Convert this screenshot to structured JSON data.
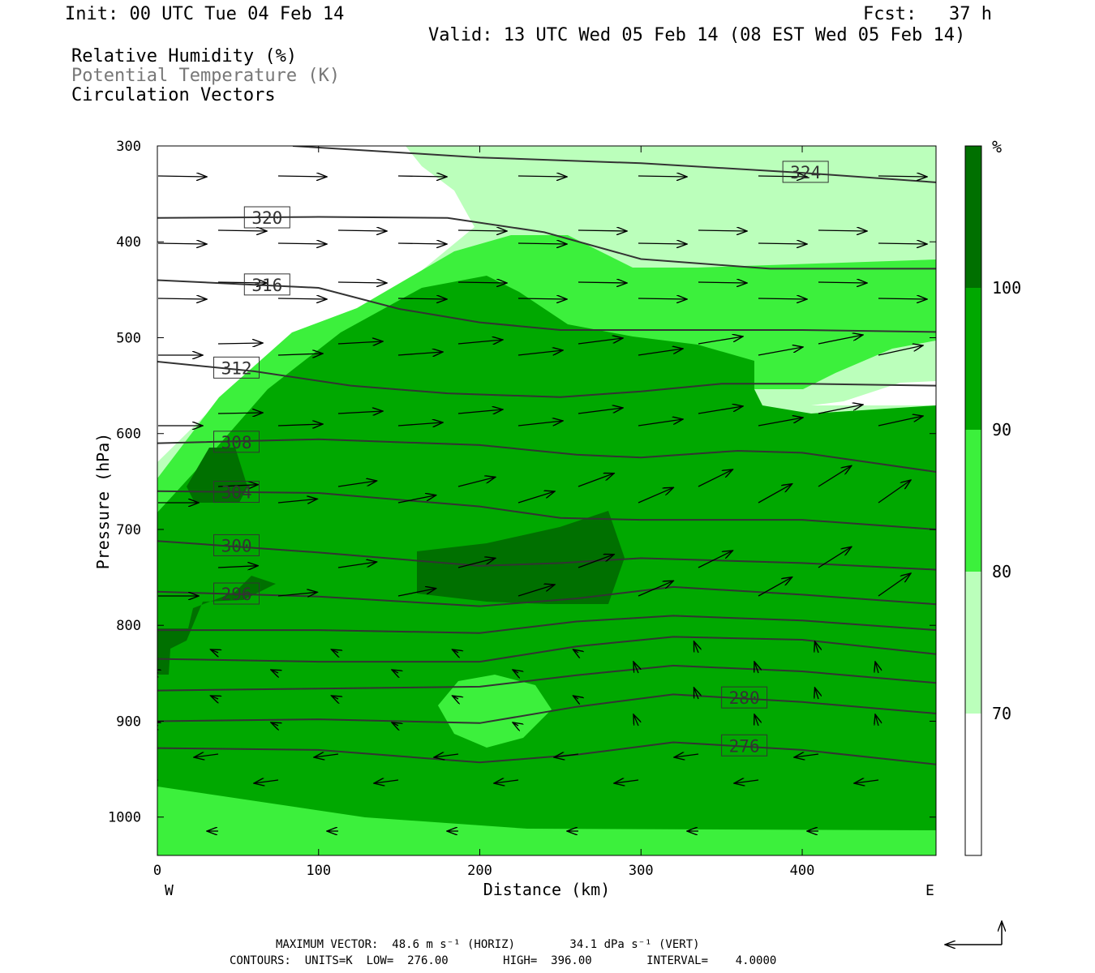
{
  "header": {
    "init": "Init: 00 UTC Tue 04 Feb 14",
    "fcst": "Fcst:   37 h",
    "valid": "Valid: 13 UTC Wed 05 Feb 14 (08 EST Wed 05 Feb 14)",
    "legend_rh": "Relative Humidity (%)",
    "legend_theta": "Potential Temperature (K)",
    "legend_vec": "Circulation Vectors"
  },
  "footer": {
    "max_vector": "MAXIMUM VECTOR:  48.6 m s⁻¹ (HORIZ)        34.1 dPa s⁻¹ (VERT)",
    "contours": "CONTOURS:  UNITS=K  LOW=  276.00        HIGH=  396.00        INTERVAL=    4.0000"
  },
  "colors": {
    "rh_below_70": "#ffffff",
    "rh_70_80": "#bbffbb",
    "rh_80_90": "#3cf03c",
    "rh_90_100": "#00a800",
    "rh_100": "#007000",
    "contour": "#333333"
  },
  "chart_data": {
    "type": "cross-section",
    "xlabel": "Distance (km)",
    "ylabel": "Pressure (hPa)",
    "xlim": [
      0,
      483
    ],
    "ylim": [
      1040,
      300
    ],
    "x_ticks": [
      0,
      100,
      200,
      300,
      400
    ],
    "y_ticks": [
      300,
      400,
      500,
      600,
      700,
      800,
      900,
      1000
    ],
    "x_end_labels": {
      "left": "W",
      "right": "E"
    },
    "colorbar": {
      "unit": "%",
      "levels": [
        70,
        80,
        90,
        100
      ],
      "level_labels": [
        "70",
        "80",
        "90",
        "100"
      ]
    },
    "isentropes": [
      {
        "theta": 324,
        "label_x": 390,
        "points": [
          [
            84,
            300
          ],
          [
            200,
            312
          ],
          [
            300,
            318
          ],
          [
            400,
            328
          ],
          [
            483,
            338
          ]
        ]
      },
      {
        "theta": 320,
        "label_x": 56,
        "points": [
          [
            0,
            375
          ],
          [
            100,
            374
          ],
          [
            180,
            375
          ],
          [
            240,
            390
          ],
          [
            300,
            418
          ],
          [
            380,
            428
          ],
          [
            483,
            428
          ]
        ]
      },
      {
        "theta": 316,
        "label_x": 56,
        "points": [
          [
            0,
            440
          ],
          [
            100,
            448
          ],
          [
            150,
            470
          ],
          [
            200,
            484
          ],
          [
            250,
            492
          ],
          [
            300,
            492
          ],
          [
            400,
            492
          ],
          [
            483,
            494
          ]
        ]
      },
      {
        "theta": 312,
        "label_x": 37,
        "points": [
          [
            0,
            525
          ],
          [
            60,
            535
          ],
          [
            120,
            550
          ],
          [
            180,
            558
          ],
          [
            250,
            562
          ],
          [
            300,
            556
          ],
          [
            350,
            548
          ],
          [
            400,
            548
          ],
          [
            483,
            550
          ]
        ]
      },
      {
        "theta": 308,
        "label_x": 37,
        "points": [
          [
            0,
            610
          ],
          [
            100,
            606
          ],
          [
            200,
            612
          ],
          [
            260,
            622
          ],
          [
            300,
            625
          ],
          [
            360,
            618
          ],
          [
            400,
            620
          ],
          [
            483,
            640
          ]
        ]
      },
      {
        "theta": 304,
        "label_x": 37,
        "points": [
          [
            0,
            660
          ],
          [
            100,
            662
          ],
          [
            200,
            676
          ],
          [
            250,
            688
          ],
          [
            300,
            690
          ],
          [
            400,
            690
          ],
          [
            483,
            700
          ]
        ]
      },
      {
        "theta": 300,
        "label_x": 37,
        "points": [
          [
            0,
            712
          ],
          [
            100,
            724
          ],
          [
            200,
            738
          ],
          [
            250,
            735
          ],
          [
            300,
            730
          ],
          [
            400,
            735
          ],
          [
            483,
            742
          ]
        ]
      },
      {
        "theta": 296,
        "label_x": 37,
        "points": [
          [
            0,
            765
          ],
          [
            100,
            770
          ],
          [
            200,
            780
          ],
          [
            260,
            772
          ],
          [
            320,
            760
          ],
          [
            400,
            768
          ],
          [
            483,
            778
          ]
        ]
      },
      {
        "theta": 292,
        "points": [
          [
            0,
            805
          ],
          [
            100,
            805
          ],
          [
            200,
            808
          ],
          [
            260,
            796
          ],
          [
            320,
            790
          ],
          [
            400,
            795
          ],
          [
            483,
            805
          ]
        ]
      },
      {
        "theta": 288,
        "points": [
          [
            0,
            835
          ],
          [
            100,
            838
          ],
          [
            200,
            838
          ],
          [
            260,
            822
          ],
          [
            320,
            812
          ],
          [
            400,
            815
          ],
          [
            483,
            830
          ]
        ]
      },
      {
        "theta": 284,
        "points": [
          [
            0,
            868
          ],
          [
            100,
            866
          ],
          [
            200,
            864
          ],
          [
            260,
            852
          ],
          [
            320,
            842
          ],
          [
            400,
            848
          ],
          [
            483,
            860
          ]
        ]
      },
      {
        "theta": 280,
        "label_x": 352,
        "points": [
          [
            0,
            900
          ],
          [
            100,
            898
          ],
          [
            200,
            902
          ],
          [
            260,
            885
          ],
          [
            320,
            872
          ],
          [
            400,
            880
          ],
          [
            483,
            892
          ]
        ]
      },
      {
        "theta": 276,
        "label_x": 352,
        "points": [
          [
            0,
            928
          ],
          [
            100,
            930
          ],
          [
            200,
            943
          ],
          [
            260,
            935
          ],
          [
            320,
            922
          ],
          [
            400,
            930
          ],
          [
            483,
            945
          ]
        ]
      }
    ]
  }
}
